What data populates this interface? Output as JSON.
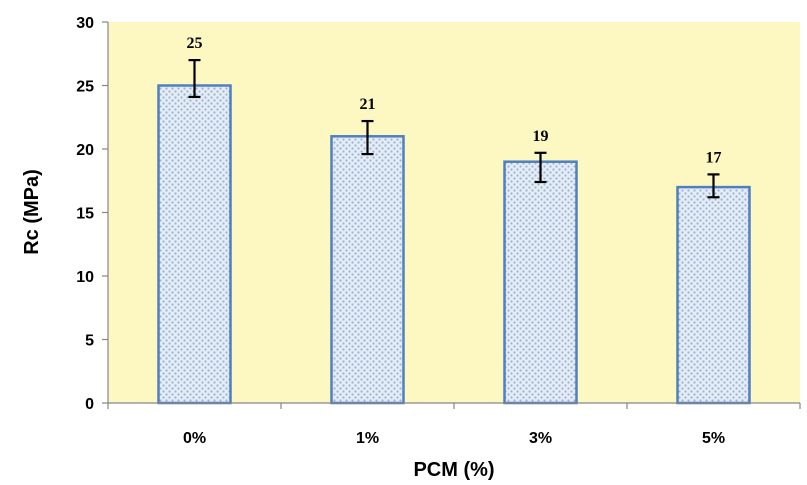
{
  "chart_data": {
    "type": "bar",
    "categories": [
      "0%",
      "1%",
      "3%",
      "5%"
    ],
    "values": [
      25,
      21,
      19,
      17
    ],
    "error_low": [
      24.1,
      19.6,
      17.4,
      16.2
    ],
    "error_high": [
      27.0,
      22.2,
      19.7,
      18.0
    ],
    "data_labels": [
      "25",
      "21",
      "19",
      "17"
    ],
    "title": "",
    "xlabel": "PCM (%)",
    "ylabel": "Rc (MPa)",
    "ylim": [
      0,
      30
    ],
    "yticks": [
      0,
      5,
      10,
      15,
      20,
      25,
      30
    ],
    "grid": false,
    "legend": "none",
    "colors": {
      "plot_background": "#fdf8c2",
      "bar_fill": "#e4ecf6",
      "bar_pattern_dot": "#9db3d3",
      "bar_edge": "#4f7fc0",
      "error_bar": "#000000",
      "axis": "#868686"
    }
  }
}
